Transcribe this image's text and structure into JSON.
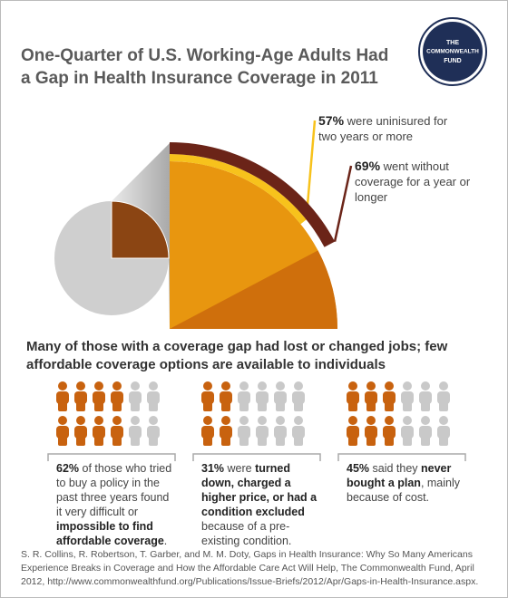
{
  "logo": [
    "THE",
    "COMMONWEALTH",
    "FUND"
  ],
  "title": [
    "One-Quarter of U.S. Working-Age Adults Had",
    "a Gap in Health Insurance Coverage in 2011"
  ],
  "pie": {
    "gap_share": 25,
    "color": "#8b4513",
    "rest_color": "#cfcfcf",
    "zoom_color": "#e8960f",
    "shade_color": "#cf6f0c",
    "arcs": [
      {
        "value": 57,
        "label": "57%",
        "text": "were uninisured for two years or more",
        "color": "#f7c21c"
      },
      {
        "value": 69,
        "label": "69%",
        "text": "went without coverage for a year or longer",
        "color": "#6b2418"
      }
    ]
  },
  "subtitle": "Many of those with a coverage gap had lost or changed jobs; few affordable coverage options are available to individuals",
  "icon_color": "#c8620f",
  "icon_rest_color": "#c9c9c9",
  "panels": [
    {
      "value": 62,
      "label": "62%",
      "parts": [
        {
          "text": " of those who tried to buy a policy in the past three years found it very difficult or ",
          "bold": false
        },
        {
          "text": "impossible to find affordable coverage",
          "bold": true
        },
        {
          "text": ".",
          "bold": false
        }
      ]
    },
    {
      "value": 31,
      "label": "31%",
      "parts": [
        {
          "text": " were ",
          "bold": false
        },
        {
          "text": "turned down, charged a higher price, or had a condition excluded",
          "bold": true
        },
        {
          "text": " because of a pre-existing condition.",
          "bold": false
        }
      ]
    },
    {
      "value": 45,
      "label": "45%",
      "parts": [
        {
          "text": " said they ",
          "bold": false
        },
        {
          "text": "never bought a plan",
          "bold": true
        },
        {
          "text": ", mainly because of cost.",
          "bold": false
        }
      ]
    }
  ],
  "source": "S. R. Collins, R. Robertson, T. Garber, and M. M. Doty, Gaps in Health Insurance: Why So Many Americans Experience Breaks in Coverage and How the Affordable Care Act Will Help, The Commonwealth Fund, April 2012, http://www.commonwealthfund.org/Publications/Issue-Briefs/2012/Apr/Gaps-in-Health-Insurance.aspx."
}
